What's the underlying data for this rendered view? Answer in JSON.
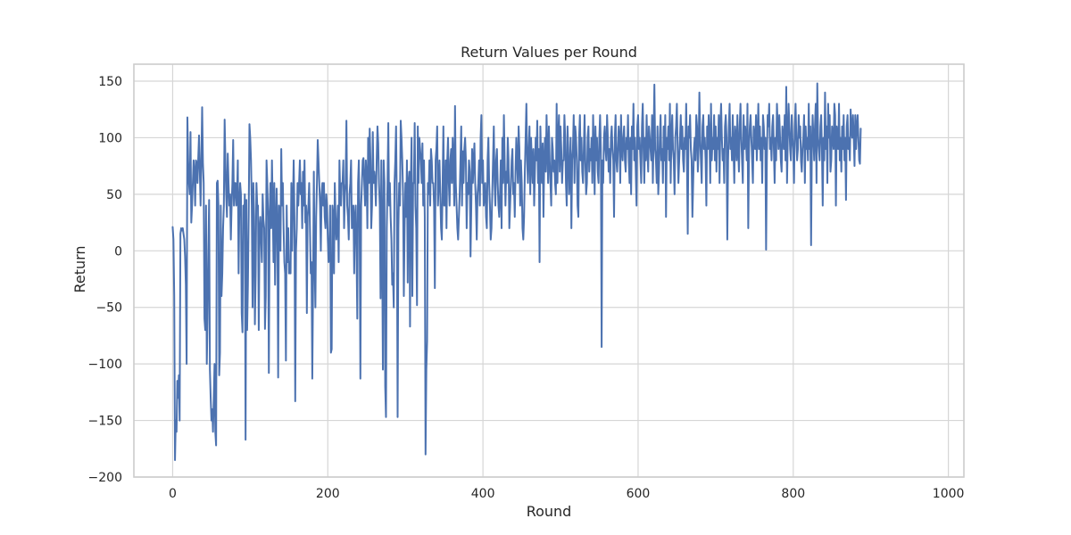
{
  "chart_data": {
    "type": "line",
    "title": "Return Values per Round",
    "xlabel": "Round",
    "ylabel": "Return",
    "xlim": [
      -50,
      1020
    ],
    "ylim": [
      -200,
      165
    ],
    "xticks": [
      0,
      200,
      400,
      600,
      800,
      1000
    ],
    "yticks": [
      -200,
      -150,
      -100,
      -50,
      0,
      50,
      100,
      150
    ],
    "grid": true,
    "legend": "none",
    "series": [
      {
        "color": "#4c72b0",
        "x_start": 0,
        "x_step": 1,
        "values": [
          21,
          10,
          -40,
          -185,
          -150,
          -160,
          -115,
          -130,
          -110,
          -150,
          15,
          20,
          18,
          20,
          15,
          10,
          -5,
          -30,
          -100,
          118,
          80,
          60,
          50,
          105,
          25,
          40,
          60,
          80,
          70,
          40,
          80,
          78,
          60,
          82,
          102,
          70,
          40,
          80,
          127,
          78,
          60,
          -60,
          -70,
          40,
          -100,
          -60,
          0,
          45,
          -105,
          -130,
          -150,
          -140,
          -160,
          -130,
          -100,
          -160,
          -172,
          60,
          62,
          40,
          -110,
          -90,
          40,
          -40,
          -20,
          20,
          40,
          116,
          80,
          50,
          30,
          86,
          60,
          40,
          50,
          10,
          40,
          60,
          98,
          40,
          60,
          60,
          40,
          50,
          80,
          -20,
          40,
          60,
          50,
          -55,
          -72,
          40,
          20,
          50,
          -167,
          45,
          -70,
          -30,
          30,
          112,
          100,
          80,
          40,
          -50,
          60,
          30,
          -65,
          -20,
          60,
          40,
          40,
          -70,
          20,
          30,
          10,
          -10,
          50,
          28,
          20,
          -69,
          -40,
          80,
          60,
          30,
          -108,
          30,
          60,
          20,
          80,
          40,
          -10,
          60,
          -30,
          20,
          55,
          20,
          -112,
          40,
          30,
          0,
          90,
          40,
          60,
          20,
          -10,
          -20,
          -97,
          40,
          -10,
          20,
          -20,
          -10,
          -20,
          60,
          0,
          40,
          80,
          30,
          -133,
          0,
          20,
          60,
          40,
          60,
          80,
          50,
          60,
          20,
          70,
          40,
          80,
          25,
          40,
          -55,
          30,
          40,
          60,
          20,
          -20,
          -10,
          -113,
          -30,
          70,
          -10,
          -50,
          30,
          60,
          98,
          80,
          60,
          40,
          0,
          50,
          60,
          40,
          60,
          30,
          20,
          50,
          40,
          10,
          -10,
          0,
          40,
          -90,
          -87,
          40,
          30,
          -20,
          60,
          30,
          10,
          20,
          40,
          -10,
          80,
          50,
          40,
          60,
          60,
          80,
          20,
          50,
          60,
          115,
          40,
          30,
          10,
          50,
          60,
          80,
          20,
          30,
          40,
          -20,
          30,
          40,
          0,
          -60,
          60,
          80,
          20,
          -113,
          40,
          60,
          80,
          82,
          60,
          40,
          80,
          65,
          20,
          100,
          60,
          108,
          80,
          20,
          40,
          105,
          60,
          70,
          60,
          40,
          80,
          110,
          95,
          60,
          40,
          -42,
          80,
          10,
          -105,
          80,
          60,
          -120,
          -147,
          20,
          60,
          113,
          40,
          60,
          30,
          10,
          -30,
          -20,
          -50,
          60,
          80,
          110,
          40,
          -147,
          20,
          60,
          40,
          115,
          100,
          80,
          50,
          -40,
          20,
          60,
          30,
          80,
          -28,
          60,
          70,
          -67,
          60,
          100,
          -40,
          60,
          60,
          113,
          40,
          20,
          -48,
          110,
          60,
          100,
          90,
          80,
          60,
          95,
          40,
          80,
          30,
          -180,
          -105,
          -80,
          60,
          50,
          80,
          40,
          90,
          80,
          60,
          60,
          40,
          -33,
          80,
          90,
          110,
          40,
          60,
          80,
          50,
          20,
          10,
          60,
          110,
          40,
          40,
          80,
          20,
          80,
          100,
          60,
          40,
          80,
          90,
          60,
          100,
          80,
          40,
          128,
          60,
          40,
          20,
          10,
          30,
          50,
          80,
          110,
          40,
          88,
          60,
          90,
          100,
          80,
          20,
          60,
          50,
          80,
          70,
          -5,
          40,
          90,
          60,
          80,
          95,
          60,
          40,
          10,
          50,
          60,
          80,
          40,
          100,
          120,
          60,
          80,
          40,
          50,
          60,
          30,
          20,
          80,
          100,
          60,
          40,
          10,
          20,
          50,
          80,
          110,
          60,
          40,
          80,
          90,
          60,
          40,
          30,
          50,
          80,
          20,
          100,
          60,
          120,
          80,
          40,
          70,
          60,
          100,
          80,
          20,
          40,
          60,
          80,
          90,
          50,
          60,
          30,
          70,
          100,
          80,
          60,
          110,
          90,
          40,
          80,
          60,
          20,
          10,
          30,
          70,
          100,
          130,
          80,
          60,
          90,
          110,
          50,
          100,
          80,
          60,
          90,
          40,
          70,
          100,
          80,
          115,
          60,
          90,
          -10,
          110,
          80,
          60,
          95,
          30,
          80,
          100,
          70,
          120,
          90,
          60,
          110,
          80,
          60,
          40,
          100,
          90,
          70,
          80,
          60,
          50,
          130,
          60,
          100,
          120,
          70,
          110,
          90,
          60,
          80,
          80,
          120,
          100,
          60,
          40,
          110,
          90,
          50,
          70,
          100,
          20,
          80,
          90,
          120,
          60,
          110,
          100,
          80,
          40,
          30,
          100,
          120,
          80,
          100,
          70,
          60,
          90,
          120,
          80,
          50,
          60,
          100,
          110,
          70,
          90,
          80,
          100,
          60,
          120,
          90,
          50,
          110,
          80,
          100,
          70,
          60,
          100,
          120,
          90,
          -85,
          80,
          60,
          100,
          110,
          90,
          80,
          120,
          100,
          70,
          90,
          60,
          100,
          110,
          90,
          80,
          30,
          100,
          120,
          80,
          70,
          90,
          110,
          100,
          60,
          120,
          90,
          80,
          100,
          110,
          80,
          70,
          100,
          90,
          120,
          80,
          60,
          100,
          50,
          110,
          90,
          130,
          80,
          100,
          70,
          40,
          110,
          120,
          90,
          100,
          80,
          60,
          110,
          130,
          90,
          60,
          100,
          80,
          120,
          90,
          70,
          110,
          100,
          90,
          80,
          120,
          60,
          100,
          147,
          90,
          80,
          60,
          110,
          50,
          70,
          100,
          120,
          80,
          90,
          60,
          110,
          80,
          120,
          30,
          100,
          90,
          110,
          80,
          130,
          60,
          100,
          120,
          90,
          80,
          50,
          100,
          110,
          130,
          90,
          60,
          80,
          100,
          120,
          90,
          110,
          80,
          70,
          100,
          90,
          130,
          80,
          15,
          110,
          100,
          120,
          90,
          80,
          30,
          60,
          90,
          100,
          80,
          120,
          110,
          70,
          90,
          140,
          100,
          80,
          60,
          110,
          120,
          90,
          100,
          80,
          40,
          110,
          90,
          120,
          100,
          60,
          130,
          80,
          100,
          90,
          120,
          80,
          110,
          70,
          100,
          90,
          120,
          60,
          110,
          130,
          100,
          80,
          90,
          60,
          110,
          120,
          100,
          10,
          80,
          110,
          130,
          90,
          100,
          80,
          120,
          90,
          60,
          110,
          100,
          80,
          120,
          90,
          70,
          110,
          130,
          100,
          80,
          60,
          120,
          90,
          110,
          100,
          80,
          130,
          20,
          90,
          110,
          120,
          100,
          80,
          60,
          110,
          100,
          90,
          120,
          80,
          100,
          130,
          90,
          110,
          80,
          100,
          60,
          120,
          110,
          90,
          100,
          1,
          80,
          120,
          110,
          130,
          90,
          100,
          80,
          110,
          120,
          90,
          60,
          100,
          80,
          130,
          110,
          90,
          120,
          100,
          80,
          70,
          110,
          100,
          90,
          120,
          80,
          145,
          60,
          100,
          130,
          110,
          90,
          80,
          120,
          100,
          90,
          60,
          110,
          130,
          100,
          80,
          90,
          120,
          100,
          110,
          80,
          70,
          90,
          100,
          120,
          60,
          110,
          90,
          100,
          80,
          130,
          90,
          110,
          5,
          90,
          120,
          100,
          80,
          110,
          130,
          60,
          148,
          100,
          90,
          80,
          110,
          120,
          90,
          40,
          100,
          80,
          140,
          90,
          110,
          60,
          130,
          100,
          120,
          70,
          80,
          110,
          100,
          90,
          130,
          120,
          40,
          110,
          100,
          90,
          130,
          80,
          100,
          70,
          110,
          90,
          120,
          80,
          100,
          45,
          110,
          120,
          90,
          100,
          80,
          125,
          110,
          100,
          120,
          100,
          75,
          120,
          90,
          110,
          120,
          100,
          80,
          77,
          108
        ]
      }
    ]
  }
}
